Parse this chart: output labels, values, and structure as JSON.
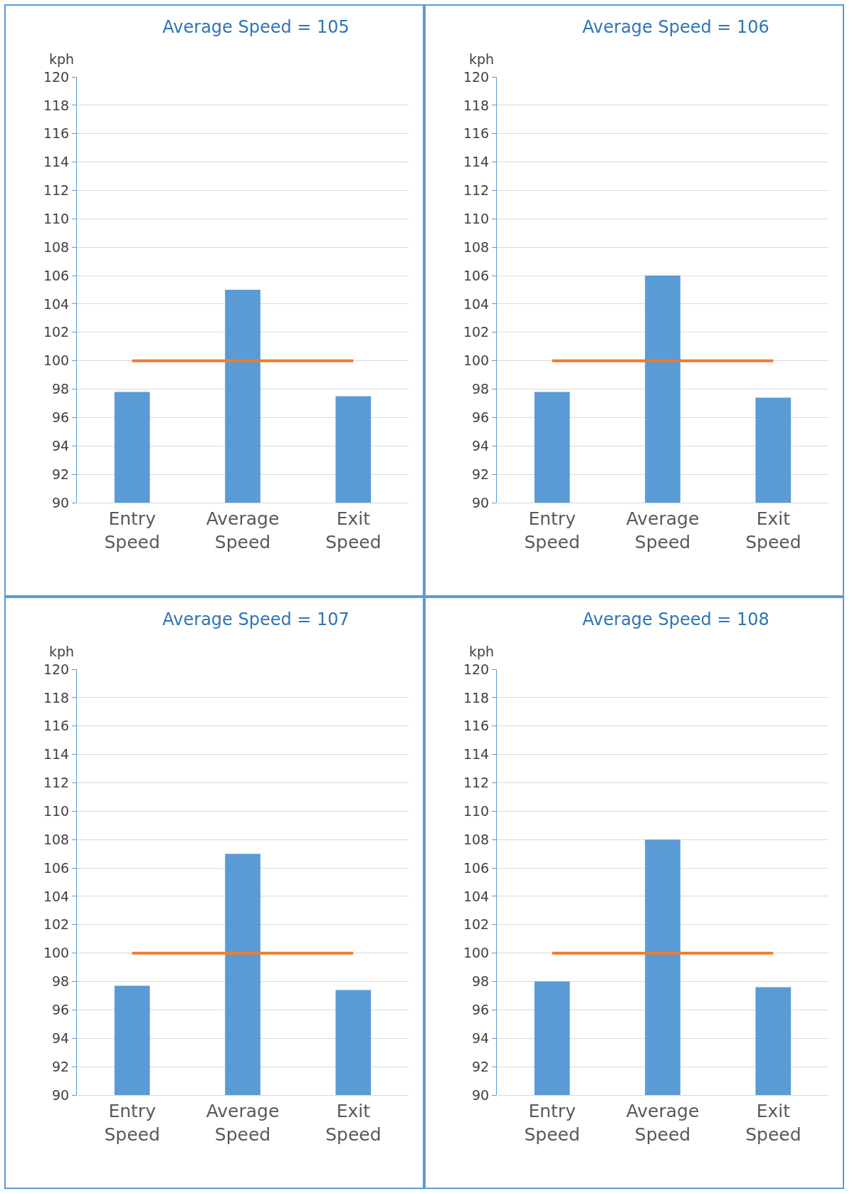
{
  "chart_data": [
    {
      "type": "bar",
      "title": "Average Speed = 105",
      "ylabel": "kph",
      "categories": [
        "Entry Speed",
        "Average Speed",
        "Exit Speed"
      ],
      "series": [
        {
          "color": "#5b9bd5",
          "values": [
            97.8,
            105,
            97.5
          ]
        },
        {
          "type": "line",
          "color": "#ed7d31",
          "values": [
            100,
            100,
            100
          ],
          "marker": "none"
        }
      ],
      "ylim": [
        90,
        120
      ],
      "yticks": [
        90,
        92,
        94,
        96,
        98,
        100,
        102,
        104,
        106,
        108,
        110,
        112,
        114,
        116,
        118,
        120
      ],
      "grid": "y"
    },
    {
      "type": "bar",
      "title": "Average Speed = 106",
      "ylabel": "kph",
      "categories": [
        "Entry Speed",
        "Average Speed",
        "Exit Speed"
      ],
      "series": [
        {
          "color": "#5b9bd5",
          "values": [
            97.8,
            106,
            97.4
          ]
        },
        {
          "type": "line",
          "color": "#ed7d31",
          "values": [
            100,
            100,
            100
          ],
          "marker": "none"
        }
      ],
      "ylim": [
        90,
        120
      ],
      "yticks": [
        90,
        92,
        94,
        96,
        98,
        100,
        102,
        104,
        106,
        108,
        110,
        112,
        114,
        116,
        118,
        120
      ],
      "grid": "y"
    },
    {
      "type": "bar",
      "title": "Average Speed = 107",
      "ylabel": "kph",
      "categories": [
        "Entry Speed",
        "Average Speed",
        "Exit Speed"
      ],
      "series": [
        {
          "color": "#5b9bd5",
          "values": [
            97.7,
            107,
            97.4
          ]
        },
        {
          "type": "line",
          "color": "#ed7d31",
          "values": [
            100,
            100,
            100
          ],
          "marker": "none"
        }
      ],
      "ylim": [
        90,
        120
      ],
      "yticks": [
        90,
        92,
        94,
        96,
        98,
        100,
        102,
        104,
        106,
        108,
        110,
        112,
        114,
        116,
        118,
        120
      ],
      "grid": "y"
    },
    {
      "type": "bar",
      "title": "Average Speed = 108",
      "ylabel": "kph",
      "categories": [
        "Entry Speed",
        "Average Speed",
        "Exit Speed"
      ],
      "series": [
        {
          "color": "#5b9bd5",
          "values": [
            98,
            108,
            97.6
          ]
        },
        {
          "type": "line",
          "color": "#ed7d31",
          "values": [
            100,
            100,
            100
          ],
          "marker": "none"
        }
      ],
      "ylim": [
        90,
        120
      ],
      "yticks": [
        90,
        92,
        94,
        96,
        98,
        100,
        102,
        104,
        106,
        108,
        110,
        112,
        114,
        116,
        118,
        120
      ],
      "grid": "y"
    }
  ]
}
